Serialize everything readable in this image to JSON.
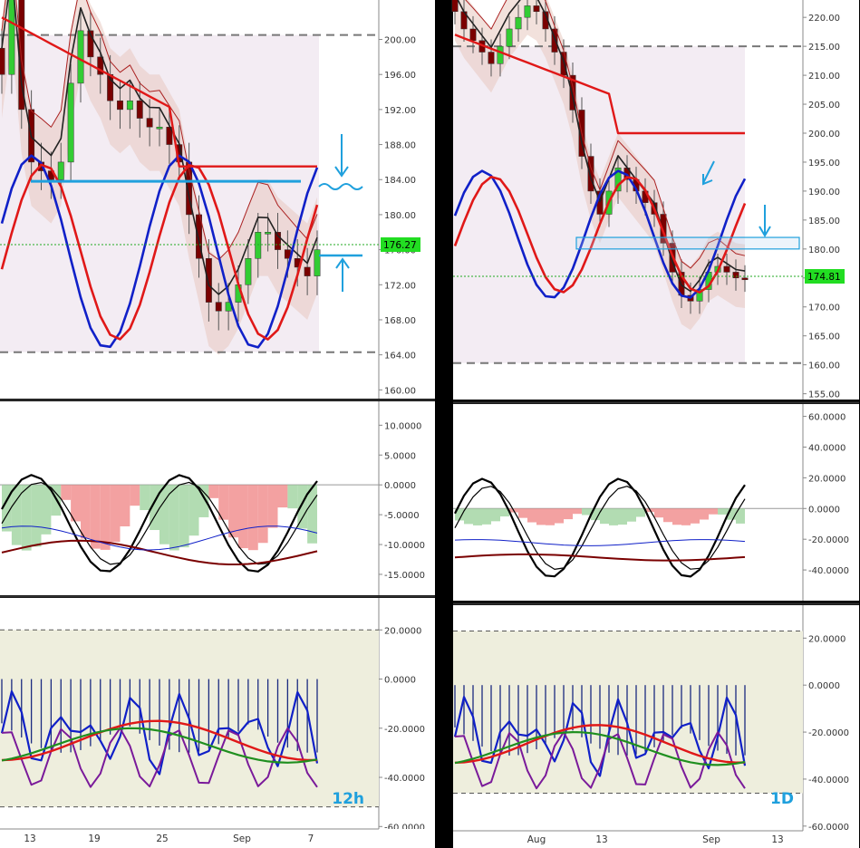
{
  "colors": {
    "bull": "#33cc33",
    "bear": "#7a0000",
    "blue_line": "#1020c8",
    "red_line": "#e01818",
    "cyan": "#1fa0dd",
    "price_tag": "#22dd22",
    "panel_bg": "#ffffff",
    "zone_bg": "#eeeedd"
  },
  "charts": [
    {
      "id": "left",
      "timeframe_label": "12h",
      "x_tick_labels": [
        "13",
        "19",
        "25",
        "Sep",
        "7"
      ],
      "current_price_label": "176.27",
      "chart_data": [
        {
          "type": "line",
          "title": "",
          "y_tick_labels": [
            "160.00",
            "164.00",
            "168.00",
            "172.00",
            "176.00",
            "180.00",
            "184.00",
            "188.00",
            "192.00",
            "196.00",
            "200.00"
          ],
          "ylim": [
            159,
            204.5
          ],
          "hlines": [
            {
              "value": 200.5,
              "style": "dashed"
            },
            {
              "value": 164.3,
              "style": "dashed"
            },
            {
              "value": 183.8,
              "style": "resistance"
            }
          ],
          "series": [
            {
              "values": [
                196,
                205,
                192,
                186,
                185,
                184,
                186,
                195,
                201,
                198,
                196,
                193,
                192,
                193,
                191,
                190,
                190,
                188,
                186,
                180,
                175,
                170,
                169,
                170,
                172,
                175,
                178,
                178,
                176,
                175,
                174,
                173,
                176
              ]
            }
          ]
        },
        {
          "type": "area",
          "title": "",
          "y_tick_labels": [
            "-15.0000",
            "-10.0000",
            "-5.0000",
            "0.0000",
            "5.0000",
            "10.0000"
          ],
          "ylim": [
            -18.5,
            14
          ]
        },
        {
          "type": "line",
          "title": "",
          "y_tick_labels": [
            "-60.0000",
            "-40.0000",
            "-20.0000",
            "0.0000",
            "20.0000"
          ],
          "ylim": [
            -61,
            33
          ],
          "hlines": [
            {
              "value": 20,
              "style": "dashed"
            },
            {
              "value": -52,
              "style": "dashed"
            }
          ]
        }
      ]
    },
    {
      "id": "right",
      "timeframe_label": "1D",
      "x_tick_labels": [
        "Aug",
        "13",
        "Sep",
        "13"
      ],
      "current_price_label": "174.81",
      "chart_data": [
        {
          "type": "line",
          "title": "",
          "y_tick_labels": [
            "155.00",
            "160.00",
            "165.00",
            "170.00",
            "175.00",
            "180.00",
            "185.00",
            "190.00",
            "195.00",
            "200.00",
            "205.00",
            "210.00",
            "215.00",
            "220.00"
          ],
          "ylim": [
            154,
            223
          ],
          "hlines": [
            {
              "value": 215,
              "style": "dashed"
            },
            {
              "value": 160.3,
              "style": "dashed"
            }
          ],
          "series": [
            {
              "values": [
                221,
                218,
                216,
                214,
                212,
                215,
                218,
                220,
                222,
                221,
                218,
                214,
                210,
                204,
                196,
                190,
                186,
                190,
                194,
                192,
                190,
                188,
                186,
                181,
                176,
                172,
                171,
                173,
                176,
                177,
                176,
                175,
                174.8
              ]
            }
          ]
        },
        {
          "type": "area",
          "title": "",
          "y_tick_labels": [
            "-40.0000",
            "-20.0000",
            "0.0000",
            "20.0000",
            "40.0000",
            "60.0000"
          ],
          "ylim": [
            -60,
            68
          ]
        },
        {
          "type": "line",
          "title": "",
          "y_tick_labels": [
            "-60.0000",
            "-40.0000",
            "-20.0000",
            "0.0000",
            "20.0000"
          ],
          "ylim": [
            -62,
            34
          ],
          "hlines": [
            {
              "value": 23,
              "style": "dashed"
            },
            {
              "value": -46,
              "style": "dashed"
            }
          ]
        }
      ]
    }
  ]
}
